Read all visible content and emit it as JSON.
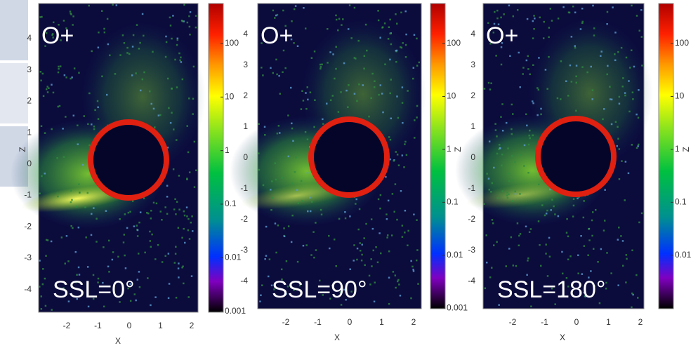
{
  "panels": [
    {
      "species": "O+",
      "ssl": "SSL=0°",
      "x_axis_label": "X",
      "y_axis_label": "Z",
      "x_ticks": [
        "-2",
        "-1",
        "0",
        "1",
        "2"
      ],
      "y_ticks": [
        "4",
        "3",
        "2",
        "1",
        "0",
        "-1",
        "-2",
        "-3",
        "-4"
      ],
      "colorbar_ticks": [
        "100",
        "10",
        "1",
        "0.1",
        "0.01",
        "0.001"
      ]
    },
    {
      "species": "O+",
      "ssl": "SSL=90°",
      "x_axis_label": "X",
      "y_axis_label": "Z",
      "x_ticks": [
        "-2",
        "-1",
        "0",
        "1",
        "2"
      ],
      "y_ticks": [
        "4",
        "3",
        "2",
        "1",
        "0",
        "-1",
        "-2",
        "-3",
        "-4"
      ],
      "colorbar_ticks": [
        "100",
        "10",
        "1",
        "0.1",
        "0.01",
        "0.001"
      ]
    },
    {
      "species": "O+",
      "ssl": "SSL=180°",
      "x_axis_label": "X",
      "y_axis_label": "Z",
      "x_ticks": [
        "-2",
        "-1",
        "0",
        "1",
        "2"
      ],
      "y_ticks": [
        "4",
        "3",
        "2",
        "1",
        "0",
        "-1",
        "-2",
        "-3",
        "-4"
      ],
      "colorbar_ticks": [
        "100",
        "10",
        "1",
        "0.1",
        "0.01"
      ]
    }
  ]
}
